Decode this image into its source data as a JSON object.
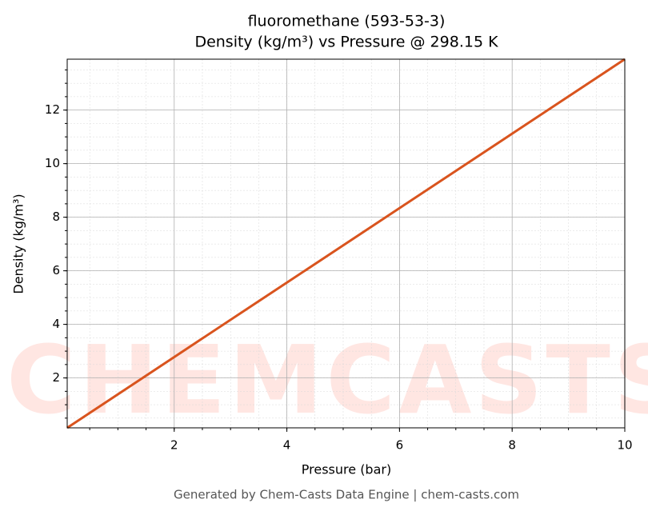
{
  "chart_data": {
    "type": "line",
    "title": "fluoromethane (593-53-3)",
    "subtitle": "Density (kg/m³) vs Pressure @ 298.15 K",
    "x_label": "Pressure (bar)",
    "y_label": "Density (kg/m³)",
    "footer": "Generated by Chem-Casts Data Engine | chem-casts.com",
    "watermark": "CHEMCASTS",
    "x": [
      0.1,
      2,
      4,
      6,
      8,
      10
    ],
    "series": [
      {
        "name": "Density",
        "color": "#d9541e",
        "values": [
          0.137,
          2.78,
          5.56,
          8.34,
          11.12,
          13.9
        ]
      }
    ],
    "xlim": [
      0.1,
      10
    ],
    "ylim": [
      0.137,
      13.9
    ],
    "xticks": [
      2,
      4,
      6,
      8,
      10
    ],
    "yticks": [
      2,
      4,
      6,
      8,
      10,
      12
    ],
    "minor_step": 0.5,
    "grid": true
  }
}
